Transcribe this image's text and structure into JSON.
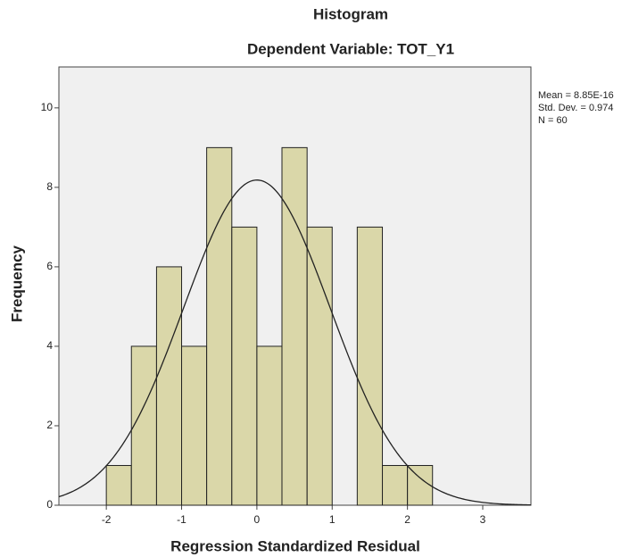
{
  "chart_data": {
    "type": "histogram",
    "title": "Histogram",
    "subtitle": "Dependent Variable: TOT_Y1",
    "x_label": "Regression Standardized Residual",
    "y_label": "Frequency",
    "bins": [
      -2,
      -1.667,
      -1.333,
      -1,
      -0.667,
      -0.333,
      0,
      0.333,
      0.667,
      1,
      1.333,
      1.667,
      2,
      2.333
    ],
    "counts": [
      1,
      4,
      6,
      4,
      9,
      7,
      4,
      9,
      7,
      0,
      7,
      1,
      1
    ],
    "color": "#d6d29c",
    "xlim": [
      -2.63,
      3.64
    ],
    "xticks": [
      -2,
      -1,
      0,
      1,
      2,
      3
    ],
    "ylim": [
      0,
      11.03
    ],
    "yticks": [
      0,
      2,
      4,
      6,
      8,
      10
    ],
    "stats": [
      {
        "value": 8.85e-16,
        "label": "Mean = 8.85E-16"
      },
      {
        "value": 0.974,
        "label": "Std. Dev. = 0.974"
      },
      {
        "value": 60,
        "label": "N = 60"
      }
    ]
  }
}
